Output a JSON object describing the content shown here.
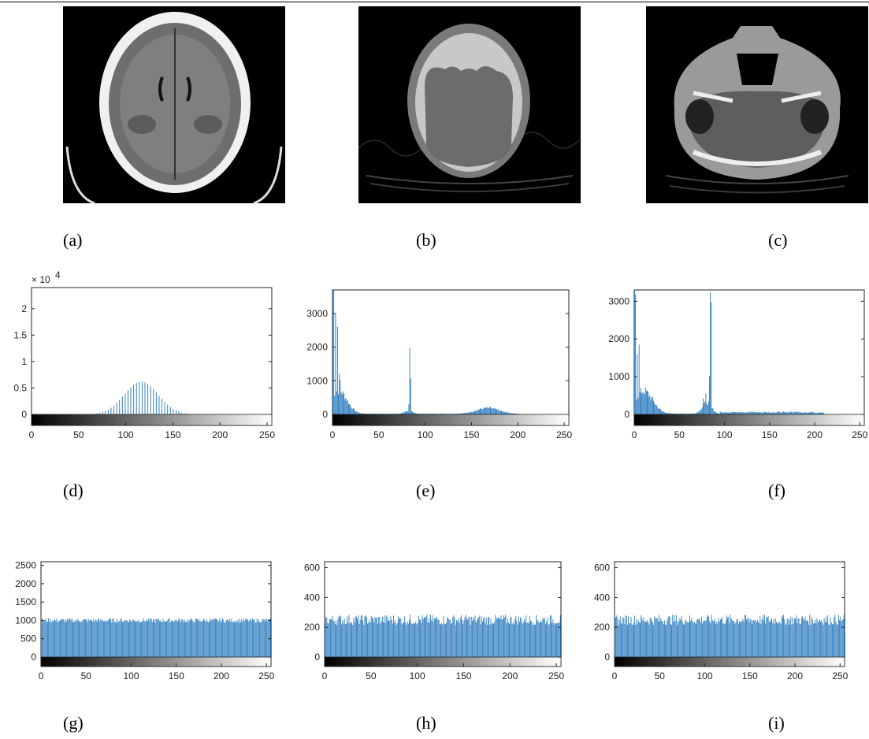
{
  "captions": {
    "a": "(a)",
    "b": "(b)",
    "c": "(c)",
    "d": "(d)",
    "e": "(e)",
    "f": "(f)",
    "g": "(g)",
    "h": "(h)",
    "i": "(i)"
  },
  "colors": {
    "bar": "#2b7bbf",
    "axis": "#222222",
    "ct_bg": "#000000"
  },
  "chart_data": [
    {
      "id": "d",
      "type": "bar",
      "exponent_label": "× 10",
      "exponent_sup": "4",
      "xlim": [
        0,
        255
      ],
      "ylim": [
        0,
        2.4
      ],
      "xticks": [
        0,
        50,
        100,
        150,
        200,
        250
      ],
      "yticks": [
        0,
        0.5,
        1,
        1.5,
        2
      ],
      "ytick_labels": [
        "0",
        "0.5",
        "1",
        "1.5",
        "2"
      ],
      "pattern": "comb",
      "peaks": [
        {
          "center": 116,
          "height": 0.62,
          "width": 18
        }
      ],
      "baseline": 0
    },
    {
      "id": "e",
      "type": "bar",
      "xlim": [
        0,
        255
      ],
      "ylim": [
        0,
        3700
      ],
      "xticks": [
        0,
        50,
        100,
        150,
        200,
        250
      ],
      "yticks": [
        0,
        1000,
        2000,
        3000
      ],
      "ytick_labels": [
        "0",
        "1000",
        "2000",
        "3000"
      ],
      "pattern": "dense",
      "spikes": [
        {
          "x": 0,
          "y": 3700
        },
        {
          "x": 1,
          "y": 3650
        },
        {
          "x": 3,
          "y": 3350
        },
        {
          "x": 5,
          "y": 2600
        },
        {
          "x": 7,
          "y": 1050
        },
        {
          "x": 8,
          "y": 980
        },
        {
          "x": 83,
          "y": 2100
        },
        {
          "x": 84,
          "y": 1200
        },
        {
          "x": 82,
          "y": 320
        }
      ],
      "peaks": [
        {
          "center": 6,
          "height": 700,
          "width": 9
        },
        {
          "center": 167,
          "height": 170,
          "width": 12
        },
        {
          "center": 82,
          "height": 90,
          "width": 4
        }
      ],
      "baseline": 20
    },
    {
      "id": "f",
      "type": "bar",
      "xlim": [
        0,
        255
      ],
      "ylim": [
        0,
        3300
      ],
      "xticks": [
        0,
        50,
        100,
        150,
        200,
        250
      ],
      "yticks": [
        0,
        1000,
        2000,
        3000
      ],
      "ytick_labels": [
        "0",
        "1000",
        "2000",
        "3000"
      ],
      "pattern": "dense",
      "spikes": [
        {
          "x": 0,
          "y": 3300
        },
        {
          "x": 1,
          "y": 3300
        },
        {
          "x": 3,
          "y": 1800
        },
        {
          "x": 5,
          "y": 1700
        },
        {
          "x": 84,
          "y": 2850
        },
        {
          "x": 85,
          "y": 2700
        },
        {
          "x": 83,
          "y": 850
        },
        {
          "x": 76,
          "y": 430
        },
        {
          "x": 79,
          "y": 480
        }
      ],
      "peaks": [
        {
          "center": 10,
          "height": 600,
          "width": 10
        },
        {
          "center": 80,
          "height": 300,
          "width": 5
        }
      ],
      "tail": {
        "from": 95,
        "to": 210,
        "height": 50
      },
      "baseline": 20
    },
    {
      "id": "g",
      "type": "bar",
      "xlim": [
        0,
        255
      ],
      "ylim": [
        0,
        2600
      ],
      "xticks": [
        0,
        50,
        100,
        150,
        200,
        250
      ],
      "yticks": [
        0,
        500,
        1000,
        1500,
        2000,
        2500
      ],
      "ytick_labels": [
        "0",
        "500",
        "1000",
        "1500",
        "2000",
        "2500"
      ],
      "pattern": "uniform",
      "level": 1000,
      "noise": 60
    },
    {
      "id": "h",
      "type": "bar",
      "xlim": [
        0,
        255
      ],
      "ylim": [
        0,
        640
      ],
      "xticks": [
        0,
        50,
        100,
        150,
        200,
        250
      ],
      "yticks": [
        0,
        200,
        400,
        600
      ],
      "ytick_labels": [
        "0",
        "200",
        "400",
        "600"
      ],
      "pattern": "uniform",
      "level": 250,
      "noise": 35
    },
    {
      "id": "i",
      "type": "bar",
      "xlim": [
        0,
        255
      ],
      "ylim": [
        0,
        640
      ],
      "xticks": [
        0,
        50,
        100,
        150,
        200,
        250
      ],
      "yticks": [
        0,
        200,
        400,
        600
      ],
      "ytick_labels": [
        "0",
        "200",
        "400",
        "600"
      ],
      "pattern": "uniform",
      "level": 250,
      "noise": 35
    }
  ]
}
